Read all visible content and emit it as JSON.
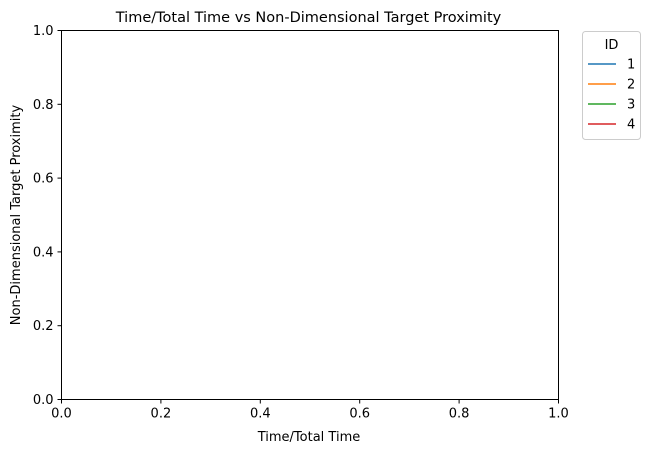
{
  "chart_data": {
    "type": "line",
    "title": "Time/Total Time vs Non-Dimensional Target Proximity",
    "xlabel": "Time/Total Time",
    "ylabel": "Non-Dimensional Target Proximity",
    "xlim": [
      0,
      1
    ],
    "ylim": [
      0,
      1
    ],
    "x_ticks": [
      "0.0",
      "0.2",
      "0.4",
      "0.6",
      "0.8",
      "1.0"
    ],
    "y_ticks": [
      "0.0",
      "0.2",
      "0.4",
      "0.6",
      "0.8",
      "1.0"
    ],
    "grid": false,
    "legend": {
      "title": "ID",
      "placement": "outside-top-right",
      "entries": [
        {
          "label": "1",
          "color": "#1f77b4"
        },
        {
          "label": "2",
          "color": "#ff7f0e"
        },
        {
          "label": "3",
          "color": "#2ca02c"
        },
        {
          "label": "4",
          "color": "#d62728"
        }
      ]
    },
    "series": [
      {
        "name": "1",
        "color": "#1f77b4",
        "x": [],
        "y": []
      },
      {
        "name": "2",
        "color": "#ff7f0e",
        "x": [],
        "y": []
      },
      {
        "name": "3",
        "color": "#2ca02c",
        "x": [],
        "y": []
      },
      {
        "name": "4",
        "color": "#d62728",
        "x": [],
        "y": []
      }
    ]
  }
}
